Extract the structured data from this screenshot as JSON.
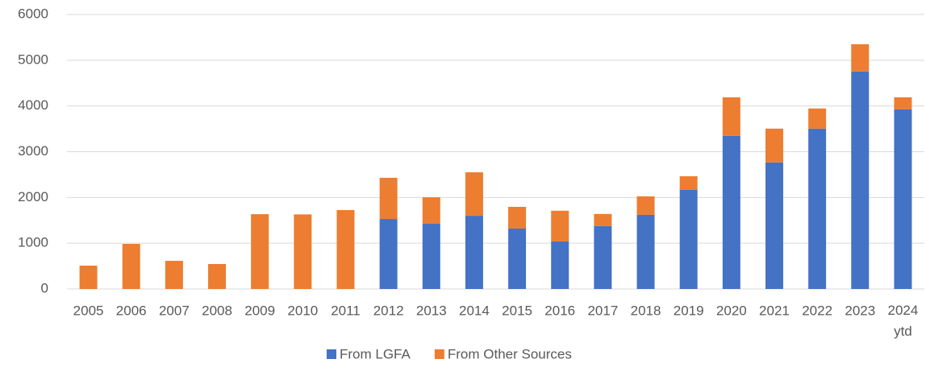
{
  "chart_data": {
    "type": "bar",
    "stacked": true,
    "categories": [
      "2005",
      "2006",
      "2007",
      "2008",
      "2009",
      "2010",
      "2011",
      "2012",
      "2013",
      "2014",
      "2015",
      "2016",
      "2017",
      "2018",
      "2019",
      "2020",
      "2021",
      "2022",
      "2023",
      "2024 ytd"
    ],
    "series": [
      {
        "name": "From LGFA",
        "color": "#4472c4",
        "values": [
          0,
          0,
          0,
          0,
          0,
          0,
          0,
          1530,
          1425,
          1600,
          1320,
          1040,
          1375,
          1620,
          2165,
          3345,
          2765,
          3505,
          4755,
          3925
        ]
      },
      {
        "name": "From Other Sources",
        "color": "#ed7d31",
        "values": [
          510,
          985,
          615,
          545,
          1635,
          1630,
          1725,
          900,
          580,
          950,
          475,
          670,
          265,
          405,
          300,
          845,
          740,
          440,
          595,
          265
        ]
      }
    ],
    "ylim": [
      0,
      6000
    ],
    "yticks": [
      0,
      1000,
      2000,
      3000,
      4000,
      5000,
      6000
    ],
    "grid": true,
    "legend": "bottom"
  }
}
